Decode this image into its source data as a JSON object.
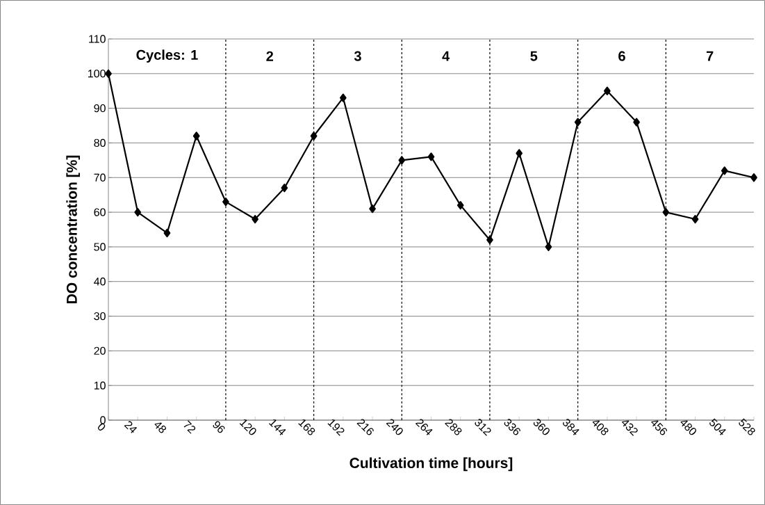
{
  "chart_data": {
    "type": "line",
    "xlabel": "Cultivation time [hours]",
    "ylabel": "DO concentration [%]",
    "x": [
      0,
      24,
      48,
      72,
      96,
      120,
      144,
      168,
      192,
      216,
      240,
      264,
      288,
      312,
      336,
      360,
      384,
      408,
      432,
      456,
      480,
      504,
      528
    ],
    "series": [
      {
        "color": "#000000",
        "values": [
          100,
          60,
          54,
          82,
          63,
          58,
          67,
          82,
          93,
          61,
          75,
          76,
          62,
          52,
          77,
          50,
          86,
          95,
          86,
          60,
          58,
          72,
          70
        ]
      }
    ],
    "xlim": [
      0,
      528
    ],
    "ylim": [
      0,
      110
    ],
    "xticks": [
      0,
      24,
      48,
      72,
      96,
      120,
      144,
      168,
      192,
      216,
      240,
      264,
      288,
      312,
      336,
      360,
      384,
      408,
      432,
      456,
      480,
      504,
      528
    ],
    "yticks": [
      0,
      10,
      20,
      30,
      40,
      50,
      60,
      70,
      80,
      90,
      100,
      110
    ],
    "grid": "y",
    "marker": "diamond",
    "line_style": "solid",
    "ref_lines": [
      {
        "axis": "x",
        "value": 96,
        "color": "#000000",
        "line_style": "dashed"
      },
      {
        "axis": "x",
        "value": 168,
        "color": "#000000",
        "line_style": "dashed"
      },
      {
        "axis": "x",
        "value": 240,
        "color": "#000000",
        "line_style": "dashed"
      },
      {
        "axis": "x",
        "value": 312,
        "color": "#000000",
        "line_style": "dashed"
      },
      {
        "axis": "x",
        "value": 384,
        "color": "#000000",
        "line_style": "dashed"
      },
      {
        "axis": "x",
        "value": 456,
        "color": "#000000",
        "line_style": "dashed"
      }
    ],
    "annotations": [
      "Cycles:  1",
      "2",
      "3",
      "4",
      "5",
      "6",
      "7"
    ]
  }
}
